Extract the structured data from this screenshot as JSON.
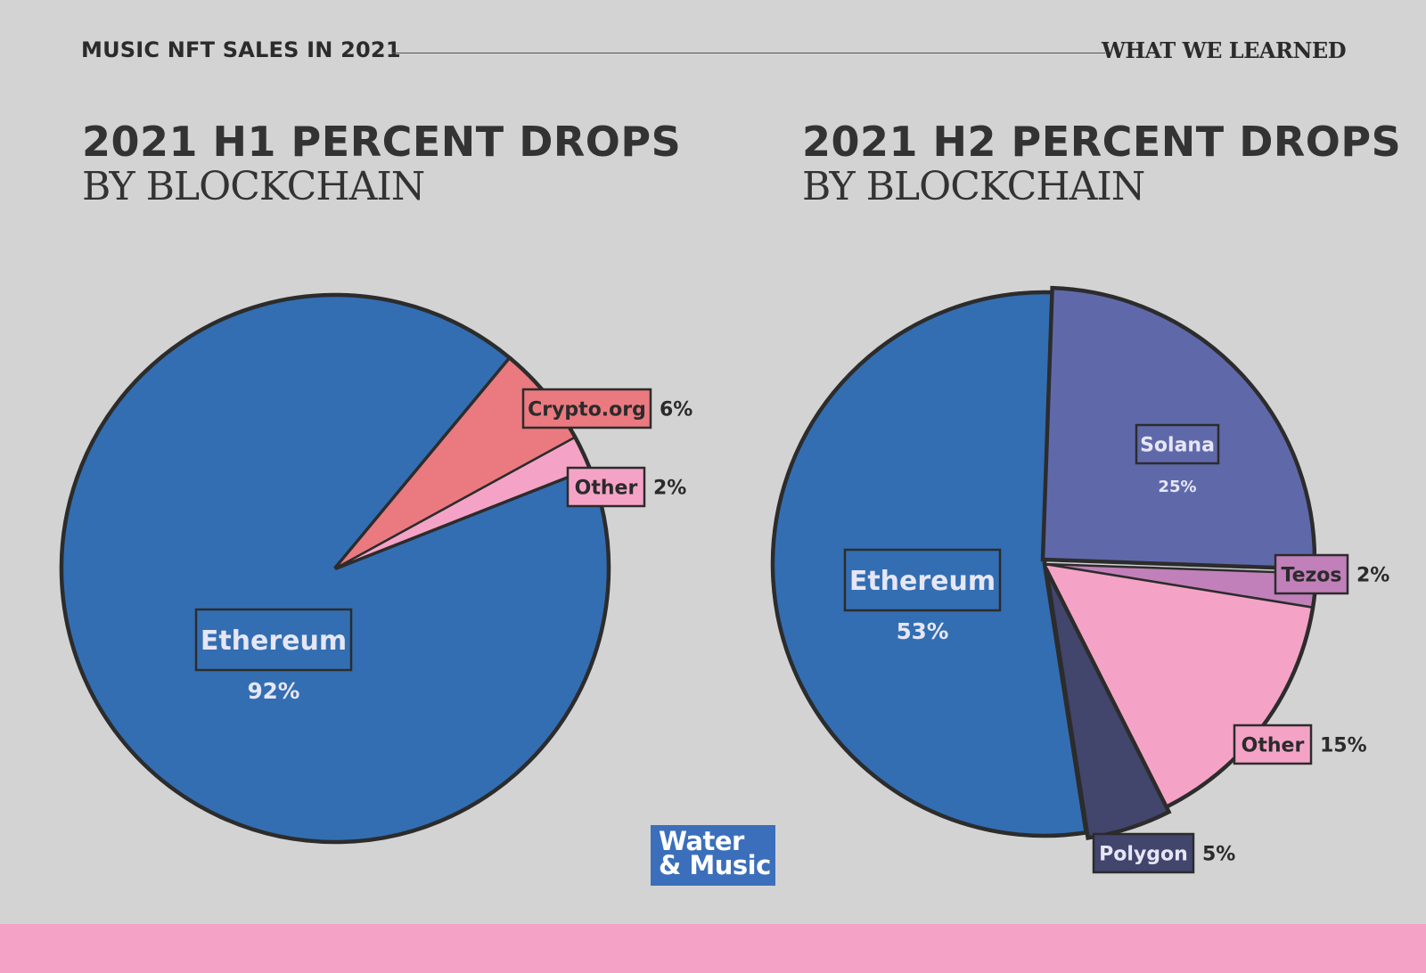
{
  "header": {
    "left": "MUSIC NFT SALES IN 2021",
    "right": "WHAT WE LEARNED"
  },
  "colors": {
    "background": "#d3d3d3",
    "ethereum": "#336eb3",
    "crypto_org": "#ea7a80",
    "other": "#f4a3c6",
    "solana": "#5f69aa",
    "tezos": "#c180b9",
    "polygon": "#42456c",
    "outline": "#2c2c2c",
    "footer": "#f4a3c6",
    "logo": "#3b6fbb"
  },
  "logo": {
    "line1": "Water",
    "line2": "& Music"
  },
  "chart_data": [
    {
      "type": "pie",
      "title": "2021 H1 PERCENT DROPS",
      "subtitle": "BY BLOCKCHAIN",
      "slices": [
        {
          "label": "Ethereum",
          "value": 92,
          "value_label": "92%",
          "color": "#336eb3"
        },
        {
          "label": "Crypto.org",
          "value": 6,
          "value_label": "6%",
          "color": "#ea7a80",
          "exploded": true
        },
        {
          "label": "Other",
          "value": 2,
          "value_label": "2%",
          "color": "#f4a3c6"
        }
      ]
    },
    {
      "type": "pie",
      "title": "2021 H2 PERCENT DROPS",
      "subtitle": "BY BLOCKCHAIN",
      "slices": [
        {
          "label": "Solana",
          "value": 25,
          "value_label": "25%",
          "color": "#5f69aa"
        },
        {
          "label": "Tezos",
          "value": 2,
          "value_label": "2%",
          "color": "#c180b9"
        },
        {
          "label": "Other",
          "value": 15,
          "value_label": "15%",
          "color": "#f4a3c6"
        },
        {
          "label": "Polygon",
          "value": 5,
          "value_label": "5%",
          "color": "#42456c"
        },
        {
          "label": "Ethereum",
          "value": 53,
          "value_label": "53%",
          "color": "#336eb3"
        }
      ]
    }
  ]
}
